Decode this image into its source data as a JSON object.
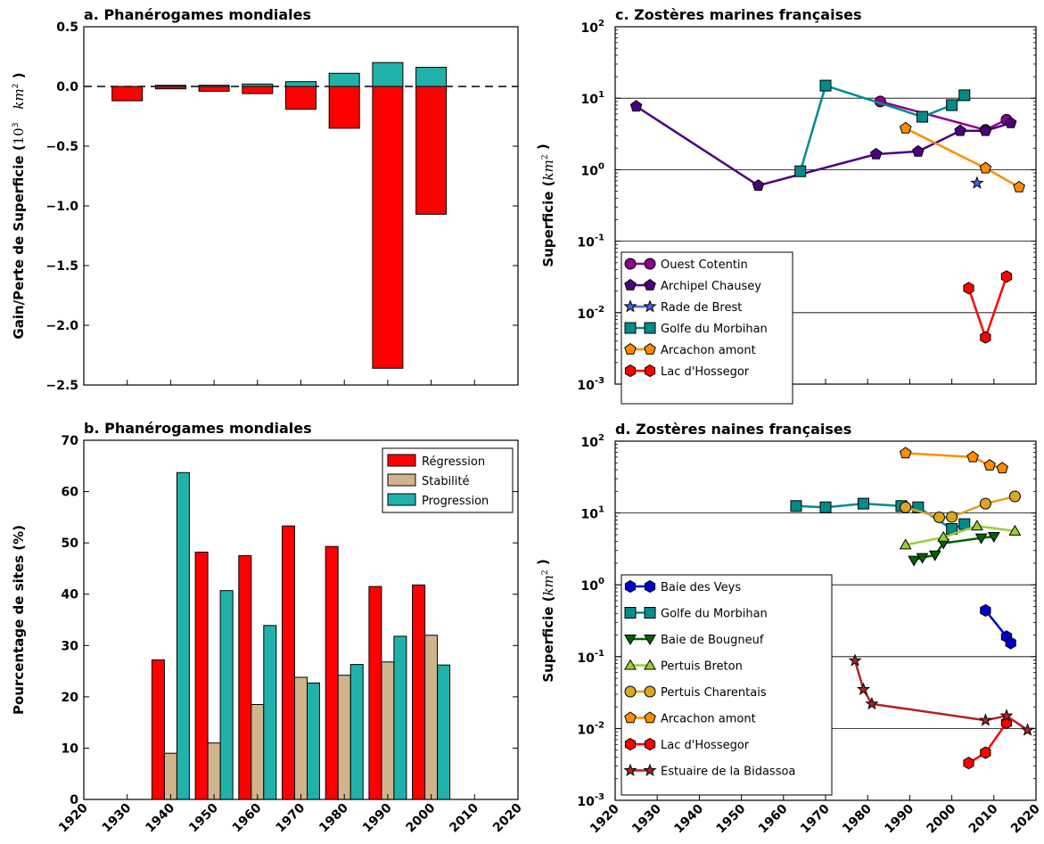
{
  "chart_data": [
    {
      "id": "a",
      "type": "bar",
      "title": "a. Phanérogames mondiales",
      "ylabel": "Gain/Perte de Superficie (",
      "ylabel_math": "10^3 km^2",
      "ylabel_close": ")",
      "ylim": [
        -2.5,
        0.5
      ],
      "yticks": [
        0.5,
        0.0,
        -0.5,
        -1.0,
        -1.5,
        -2.0,
        -2.5
      ],
      "ytick_labels": [
        "0.5",
        "0.0",
        "−0.5",
        "−1.0",
        "−1.5",
        "−2.0",
        "−2.5"
      ],
      "xlim": [
        1920,
        2020
      ],
      "categories": [
        1930,
        1940,
        1950,
        1960,
        1970,
        1980,
        1990,
        2000
      ],
      "series": [
        {
          "role": "loss",
          "color": "#ff0000",
          "values": [
            -0.12,
            -0.02,
            -0.04,
            -0.06,
            -0.19,
            -0.35,
            -2.36,
            -1.07
          ]
        },
        {
          "role": "gain",
          "color": "#20b2aa",
          "values": [
            0.0,
            0.01,
            0.01,
            0.02,
            0.04,
            0.11,
            0.2,
            0.16
          ]
        }
      ]
    },
    {
      "id": "b",
      "type": "bar",
      "title": "b. Phanérogames mondiales",
      "ylabel": "Pourcentage de sites (%)",
      "ylim": [
        0,
        70
      ],
      "yticks": [
        0,
        10,
        20,
        30,
        40,
        50,
        60,
        70
      ],
      "xlim": [
        1920,
        2020
      ],
      "xticks": [
        1920,
        1930,
        1940,
        1950,
        1960,
        1970,
        1980,
        1990,
        2000,
        2010,
        2020
      ],
      "categories": [
        1940,
        1950,
        1960,
        1970,
        1980,
        1990,
        2000
      ],
      "legend_position": "top-right",
      "series": [
        {
          "name": "Régression",
          "color": "#ff0000",
          "values": [
            27.2,
            48.2,
            47.5,
            53.3,
            49.3,
            41.5,
            41.8
          ]
        },
        {
          "name": "Stabilité",
          "color": "#d2b48c",
          "values": [
            9.0,
            11.0,
            18.5,
            23.8,
            24.2,
            26.8,
            32.0
          ]
        },
        {
          "name": "Progression",
          "color": "#20b2aa",
          "values": [
            63.7,
            40.7,
            33.9,
            22.7,
            26.3,
            31.8,
            26.2
          ]
        }
      ]
    },
    {
      "id": "c",
      "type": "line",
      "yscale": "log",
      "title": "c. Zostères marines françaises",
      "ylabel": "Superficie (",
      "ylabel_math": "km^2",
      "ylabel_close": ")",
      "ylim": [
        0.001,
        100
      ],
      "ytick_exponents": [
        -3,
        -2,
        -1,
        0,
        1,
        2
      ],
      "xlim": [
        1920,
        2020
      ],
      "grid_major_y": [
        0.01,
        0.1,
        1,
        10
      ],
      "legend_position": "lower-left",
      "series": [
        {
          "name": "Ouest Cotentin",
          "color": "#8b008b",
          "marker": "circle",
          "x": [
            1983,
            2008,
            2013
          ],
          "y": [
            9.0,
            3.6,
            5.0
          ]
        },
        {
          "name": "Archipel Chausey",
          "color": "#4b0082",
          "marker": "pentagon",
          "x": [
            1925,
            1954,
            1982,
            1992,
            2002,
            2008,
            2014
          ],
          "y": [
            7.7,
            0.6,
            1.65,
            1.8,
            3.5,
            3.5,
            4.5
          ]
        },
        {
          "name": "Rade de Brest",
          "color": "#4169e1",
          "marker": "star",
          "x": [
            2006
          ],
          "y": [
            0.65
          ]
        },
        {
          "name": "Golfe du Morbihan",
          "color": "#008b8b",
          "marker": "square",
          "x": [
            1964,
            1970,
            1993,
            2000,
            2003
          ],
          "y": [
            0.95,
            15.0,
            5.5,
            8.0,
            11.0
          ]
        },
        {
          "name": "Arcachon amont",
          "color": "#ff8c00",
          "marker": "pentagon",
          "x": [
            1989,
            2008,
            2016
          ],
          "y": [
            3.8,
            1.05,
            0.57
          ]
        },
        {
          "name": "Lac d'Hossegor",
          "color": "#ff0000",
          "marker": "hexagon",
          "x": [
            2004,
            2008,
            2013
          ],
          "y": [
            0.022,
            0.0045,
            0.032
          ]
        }
      ]
    },
    {
      "id": "d",
      "type": "line",
      "yscale": "log",
      "title": "d. Zostères naines françaises",
      "ylabel": "Superficie (",
      "ylabel_math": "km^2",
      "ylabel_close": ")",
      "ylim": [
        0.001,
        100
      ],
      "ytick_exponents": [
        -3,
        -2,
        -1,
        0,
        1,
        2
      ],
      "xlim": [
        1920,
        2020
      ],
      "xticks": [
        1920,
        1930,
        1940,
        1950,
        1960,
        1970,
        1980,
        1990,
        2000,
        2010,
        2020
      ],
      "grid_major_y": [
        0.01,
        0.1,
        1,
        10
      ],
      "legend_position": "lower-left",
      "series": [
        {
          "name": "Baie des Veys",
          "color": "#0000cd",
          "marker": "hexagon",
          "x": [
            2008,
            2013,
            2014
          ],
          "y": [
            0.44,
            0.19,
            0.155
          ]
        },
        {
          "name": "Golfe du Morbihan",
          "color": "#008b8b",
          "marker": "square",
          "x": [
            1963,
            1970,
            1979,
            1988,
            1992,
            2000,
            2003
          ],
          "y": [
            12.5,
            12.0,
            13.5,
            12.5,
            12.0,
            6.0,
            7.0
          ]
        },
        {
          "name": "Baie de Bougneuf",
          "color": "#006400",
          "marker": "triangle-down",
          "x": [
            1991,
            1993,
            1996,
            1998,
            2007,
            2010
          ],
          "y": [
            2.2,
            2.4,
            2.6,
            3.8,
            4.5,
            4.7
          ]
        },
        {
          "name": "Pertuis Breton",
          "color": "#9acd32",
          "marker": "triangle-up",
          "x": [
            1989,
            1998,
            2006,
            2015
          ],
          "y": [
            3.6,
            4.6,
            6.6,
            5.6
          ]
        },
        {
          "name": "Pertuis Charentais",
          "color": "#daa520",
          "marker": "circle",
          "x": [
            1989,
            1997,
            2000,
            2008,
            2015
          ],
          "y": [
            12.0,
            8.7,
            8.8,
            13.5,
            17.0
          ]
        },
        {
          "name": "Arcachon amont",
          "color": "#ff8c00",
          "marker": "pentagon",
          "x": [
            1989,
            2005,
            2009,
            2012
          ],
          "y": [
            68.0,
            60.0,
            46.0,
            42.0
          ]
        },
        {
          "name": "Lac d'Hossegor",
          "color": "#ff0000",
          "marker": "hexagon",
          "x": [
            2004,
            2008,
            2013
          ],
          "y": [
            0.0033,
            0.0046,
            0.012
          ]
        },
        {
          "name": "Estuaire de la Bidassoa",
          "color": "#b22222",
          "marker": "star",
          "x": [
            1977,
            1979,
            1981,
            2008,
            2013,
            2018
          ],
          "y": [
            0.088,
            0.035,
            0.022,
            0.013,
            0.015,
            0.0095
          ]
        }
      ]
    }
  ]
}
